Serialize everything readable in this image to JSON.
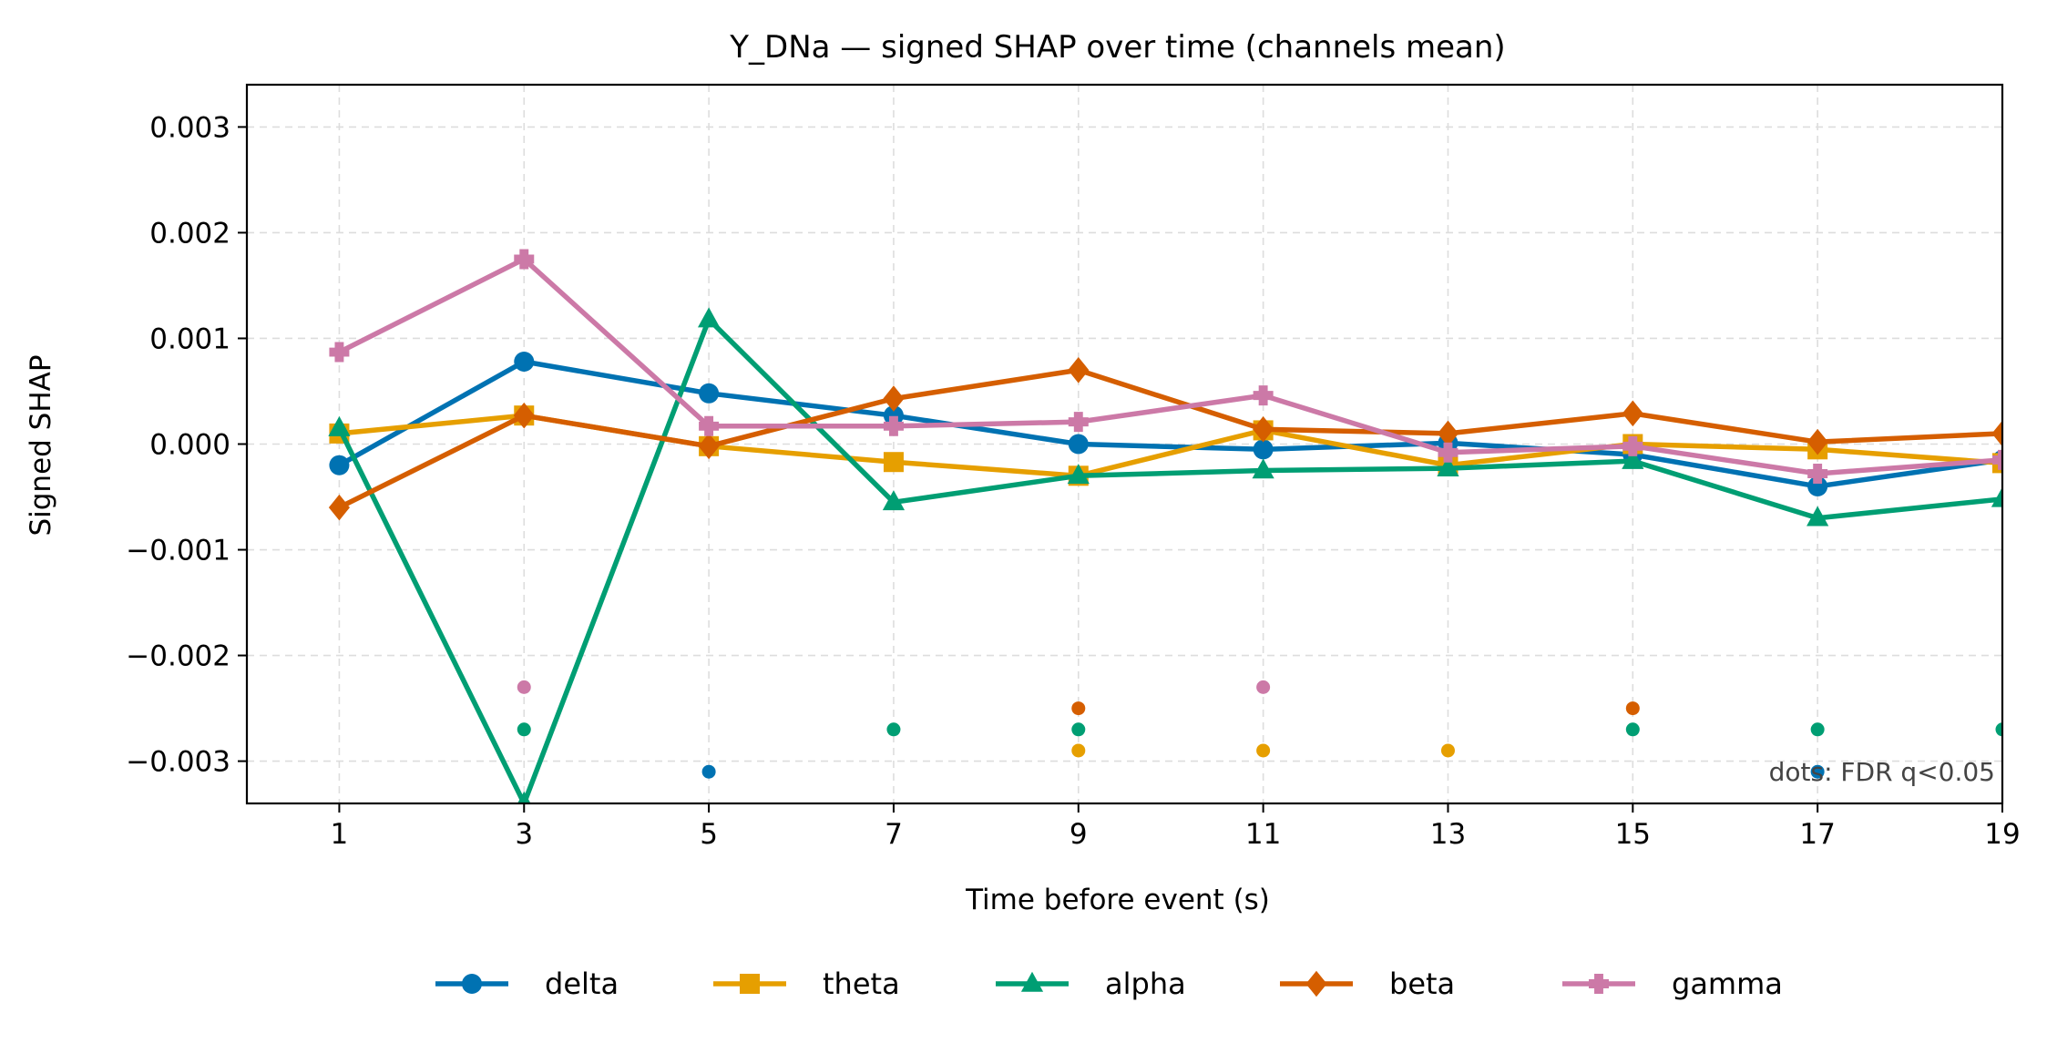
{
  "chart_data": {
    "type": "line",
    "title": "Y_DNa — signed SHAP over time (channels mean)",
    "xlabel": "Time before event (s)",
    "ylabel": "Signed SHAP",
    "x": [
      1,
      3,
      5,
      7,
      9,
      11,
      13,
      15,
      17,
      19
    ],
    "xlim": [
      0,
      19
    ],
    "ylim": [
      -0.0034,
      0.0034
    ],
    "yticks": [
      0.003,
      0.002,
      0.001,
      0.0,
      -0.001,
      -0.002,
      -0.003
    ],
    "ytick_labels": [
      "0.003",
      "0.002",
      "0.001",
      "0.000",
      "−0.001",
      "−0.002",
      "−0.003"
    ],
    "xtick_labels": [
      "1",
      "3",
      "5",
      "7",
      "9",
      "11",
      "13",
      "15",
      "17",
      "19"
    ],
    "grid": true,
    "legend_position": "bottom-center",
    "annotation": "dots: FDR q<0.05",
    "series": [
      {
        "name": "delta",
        "color": "#0072B2",
        "marker": "circle",
        "values": [
          -0.0002,
          0.00078,
          0.00048,
          0.00027,
          0.0,
          -5e-05,
          1e-05,
          -0.0001,
          -0.0004,
          -0.00015
        ],
        "significant_x": [
          5,
          17
        ],
        "significant_y": -0.0031
      },
      {
        "name": "theta",
        "color": "#E69F00",
        "marker": "square",
        "values": [
          0.0001,
          0.00027,
          -2e-05,
          -0.00017,
          -0.0003,
          0.00013,
          -0.0002,
          0.0,
          -5e-05,
          -0.00018
        ],
        "significant_x": [
          9,
          11,
          13
        ],
        "significant_y": -0.0029
      },
      {
        "name": "alpha",
        "color": "#009E73",
        "marker": "triangle",
        "values": [
          0.00015,
          -0.0034,
          0.00118,
          -0.00055,
          -0.0003,
          -0.00025,
          -0.00023,
          -0.00016,
          -0.0007,
          -0.00052
        ],
        "significant_x": [
          3,
          7,
          9,
          15,
          17,
          19
        ],
        "significant_y": -0.0027
      },
      {
        "name": "beta",
        "color": "#D55E00",
        "marker": "diamond",
        "values": [
          -0.0006,
          0.00027,
          -2e-05,
          0.00043,
          0.0007,
          0.00014,
          0.0001,
          0.00029,
          2e-05,
          0.0001
        ],
        "significant_x": [
          9,
          15
        ],
        "significant_y": -0.0025
      },
      {
        "name": "gamma",
        "color": "#CC79A7",
        "marker": "plus",
        "values": [
          0.00087,
          0.00175,
          0.00017,
          0.00017,
          0.00021,
          0.00046,
          -8e-05,
          -2e-05,
          -0.00028,
          -0.00015
        ],
        "significant_x": [
          3,
          11
        ],
        "significant_y": -0.0023
      }
    ]
  }
}
